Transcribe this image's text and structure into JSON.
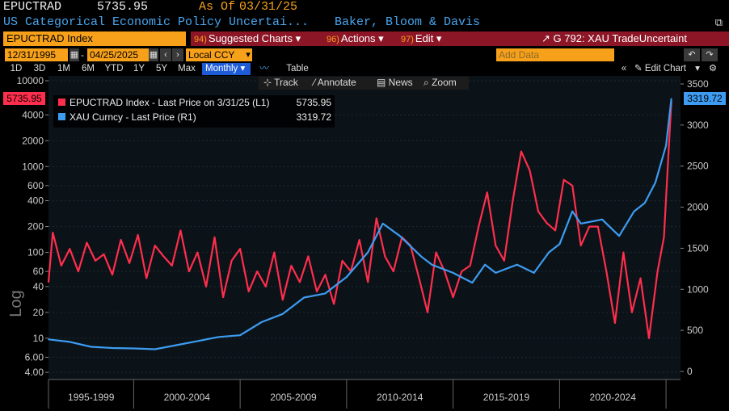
{
  "header": {
    "ticker": "EPUCTRAD",
    "last_value": "5735.95",
    "as_of_label": "As Of",
    "as_of_date": "03/31/25",
    "description": "US Categorical Economic Policy Uncertai...",
    "source": "Baker, Bloom & Davis"
  },
  "menubar": {
    "security": "EPUCTRAD Index",
    "suggested_num": "94)",
    "suggested": "Suggested Charts",
    "actions_num": "96)",
    "actions": "Actions",
    "edit_num": "97)",
    "edit": "Edit",
    "graph_title": "G 792: XAU TradeUncertaint"
  },
  "controls": {
    "start_date": "12/31/1995",
    "end_date": "04/25/2025",
    "currency": "Local CCY",
    "add_data_placeholder": "Add Data",
    "edit_chart": "Edit Chart"
  },
  "periods": [
    "1D",
    "3D",
    "1M",
    "6M",
    "YTD",
    "1Y",
    "5Y",
    "Max"
  ],
  "frequency": "Monthly",
  "table_label": "Table",
  "tools": {
    "track": "Track",
    "annotate": "Annotate",
    "news": "News",
    "zoom": "Zoom"
  },
  "legend": [
    {
      "label": "EPUCTRAD Index - Last Price on 3/31/25 (L1)",
      "value": "5735.95",
      "color": "#ff2e4c"
    },
    {
      "label": "XAU Curncy - Last Price (R1)",
      "value": "3319.72",
      "color": "#3d9cf2"
    }
  ],
  "last_badges": {
    "left": "5735.95",
    "right": "3319.72"
  },
  "colors": {
    "epu": "#ff2e4c",
    "gold": "#3d9cf2",
    "accent_orange": "#f7a11a",
    "menu_red": "#8c1526",
    "active_blue": "#1e5bd6"
  },
  "chart_data": {
    "type": "line",
    "left_axis": {
      "label": "Log",
      "scale": "log",
      "ticks": [
        "10000",
        "4000",
        "2000",
        "1000",
        "600",
        "400",
        "200",
        "100",
        "60",
        "40",
        "20",
        "10",
        "6.00",
        "4.00"
      ],
      "tick_values": [
        10000,
        4000,
        2000,
        1000,
        600,
        400,
        200,
        100,
        60,
        40,
        20,
        10,
        6,
        4
      ]
    },
    "right_axis": {
      "scale": "linear",
      "ticks": [
        "3500",
        "3000",
        "2500",
        "2000",
        "1500",
        "1000",
        "500",
        "0"
      ],
      "tick_values": [
        3500,
        3000,
        2500,
        2000,
        1500,
        1000,
        500,
        0
      ],
      "range": [
        0,
        3500
      ]
    },
    "x_period_labels": [
      "1995-1999",
      "2000-2004",
      "2005-2009",
      "2010-2014",
      "2015-2019",
      "2020-2024"
    ],
    "x_range": [
      1996.0,
      2025.3
    ],
    "series": [
      {
        "name": "EPUCTRAD Index",
        "axis": "left",
        "color": "#ff2e4c",
        "x": [
          1996.0,
          1996.2,
          1996.6,
          1997.0,
          1997.4,
          1997.8,
          1998.2,
          1998.6,
          1999.0,
          1999.4,
          1999.8,
          2000.2,
          2000.6,
          2001.0,
          2001.4,
          2001.8,
          2002.2,
          2002.6,
          2003.0,
          2003.4,
          2003.8,
          2004.2,
          2004.6,
          2005.0,
          2005.4,
          2005.8,
          2006.2,
          2006.6,
          2007.0,
          2007.4,
          2007.8,
          2008.2,
          2008.6,
          2009.0,
          2009.4,
          2009.8,
          2010.2,
          2010.6,
          2011.0,
          2011.4,
          2011.8,
          2012.2,
          2012.6,
          2013.0,
          2013.4,
          2013.8,
          2014.2,
          2014.6,
          2015.0,
          2015.4,
          2015.8,
          2016.2,
          2016.6,
          2017.0,
          2017.4,
          2017.8,
          2018.2,
          2018.6,
          2019.0,
          2019.4,
          2019.8,
          2020.2,
          2020.6,
          2021.0,
          2021.4,
          2021.8,
          2022.2,
          2022.6,
          2023.0,
          2023.4,
          2023.8,
          2024.2,
          2024.6,
          2024.9,
          2025.1,
          2025.25
        ],
        "y": [
          45,
          170,
          70,
          110,
          60,
          130,
          80,
          95,
          55,
          140,
          75,
          160,
          50,
          120,
          90,
          70,
          180,
          60,
          100,
          40,
          150,
          30,
          80,
          110,
          35,
          60,
          40,
          100,
          28,
          70,
          45,
          90,
          35,
          55,
          25,
          80,
          60,
          140,
          45,
          250,
          90,
          60,
          150,
          120,
          50,
          20,
          100,
          60,
          30,
          60,
          70,
          200,
          500,
          120,
          80,
          400,
          1500,
          900,
          300,
          220,
          180,
          700,
          600,
          120,
          200,
          200,
          60,
          15,
          100,
          20,
          50,
          10,
          60,
          150,
          1200,
          5736
        ]
      },
      {
        "name": "XAU Curncy",
        "axis": "right",
        "color": "#3d9cf2",
        "x": [
          1996.0,
          1997.0,
          1998.0,
          1999.0,
          2000.0,
          2001.0,
          2002.0,
          2003.0,
          2004.0,
          2005.0,
          2006.0,
          2007.0,
          2008.0,
          2009.0,
          2010.0,
          2011.0,
          2011.7,
          2012.5,
          2013.5,
          2014.0,
          2015.0,
          2015.9,
          2016.5,
          2017.0,
          2018.0,
          2018.8,
          2019.5,
          2020.0,
          2020.6,
          2021.0,
          2022.0,
          2022.8,
          2023.5,
          2024.0,
          2024.5,
          2025.0,
          2025.25
        ],
        "y": [
          390,
          360,
          300,
          285,
          280,
          270,
          320,
          370,
          420,
          440,
          600,
          700,
          900,
          950,
          1150,
          1450,
          1800,
          1650,
          1400,
          1300,
          1200,
          1080,
          1300,
          1200,
          1300,
          1200,
          1450,
          1550,
          1950,
          1800,
          1850,
          1650,
          1950,
          2050,
          2300,
          2750,
          3320
        ]
      }
    ]
  }
}
